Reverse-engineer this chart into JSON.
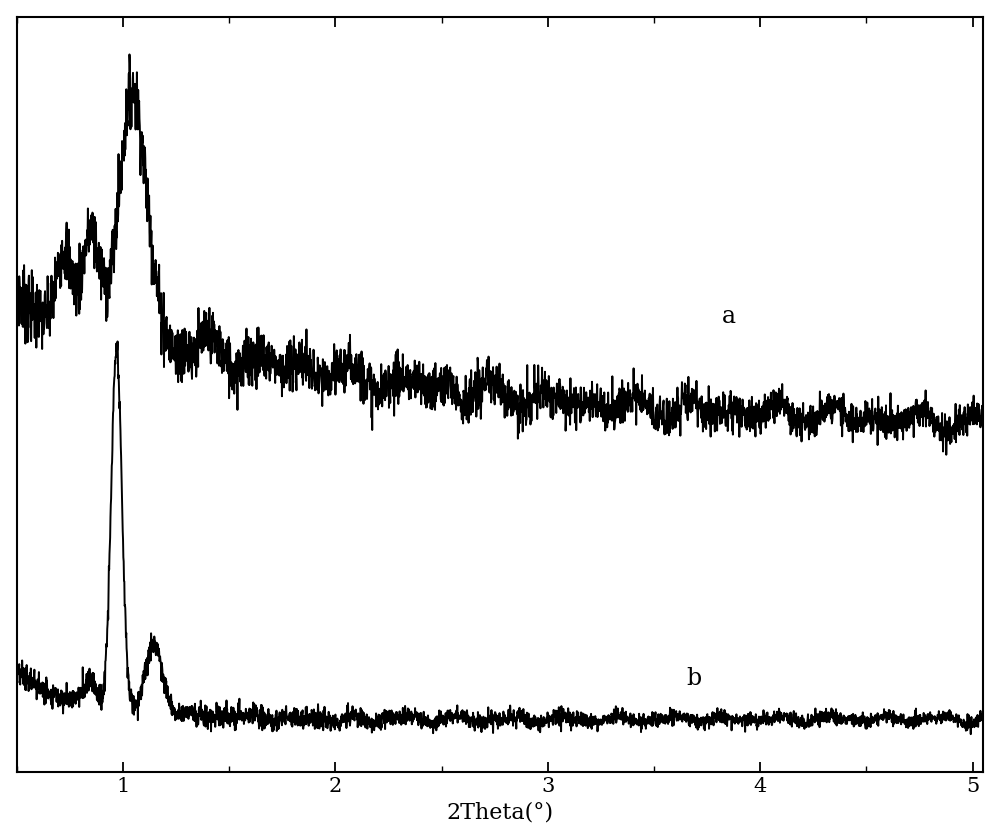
{
  "xlabel": "2Theta(°)",
  "xlabel_fontsize": 16,
  "tick_fontsize": 15,
  "label_a": "a",
  "label_b": "b",
  "xlim": [
    0.5,
    5.05
  ],
  "ylim": [
    0.0,
    1.0
  ],
  "xticks": [
    1,
    2,
    3,
    4,
    5
  ],
  "line_color": "#000000",
  "line_width": 1.4,
  "background_color": "#ffffff"
}
